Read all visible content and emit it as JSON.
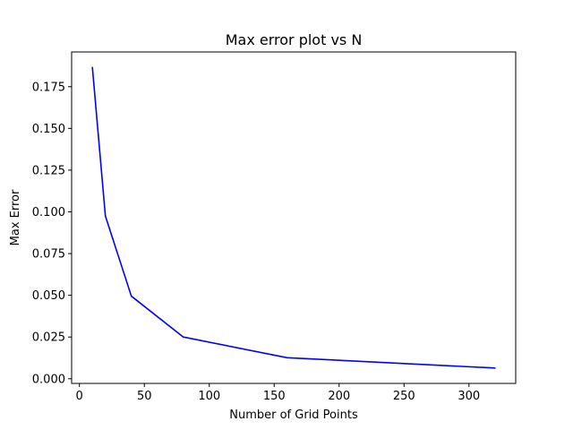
{
  "chart_data": {
    "type": "line",
    "title": "Max error plot vs N",
    "xlabel": "Number of Grid Points",
    "ylabel": "Max Error",
    "xlim": [
      -6,
      336
    ],
    "ylim": [
      -0.0028,
      0.1958
    ],
    "x_ticks": [
      0,
      50,
      100,
      150,
      200,
      250,
      300
    ],
    "x_tick_labels": [
      "0",
      "50",
      "100",
      "150",
      "200",
      "250",
      "300"
    ],
    "y_ticks": [
      0.0,
      0.025,
      0.05,
      0.075,
      0.1,
      0.125,
      0.15,
      0.175
    ],
    "y_tick_labels": [
      "0.000",
      "0.025",
      "0.050",
      "0.075",
      "0.100",
      "0.125",
      "0.150",
      "0.175"
    ],
    "grid": false,
    "legend": "none",
    "series": [
      {
        "color": "#0000ff",
        "x": [
          10,
          20,
          40,
          80,
          160,
          320
        ],
        "y": [
          0.1865,
          0.0975,
          0.0495,
          0.025,
          0.0126,
          0.0064
        ]
      }
    ]
  }
}
